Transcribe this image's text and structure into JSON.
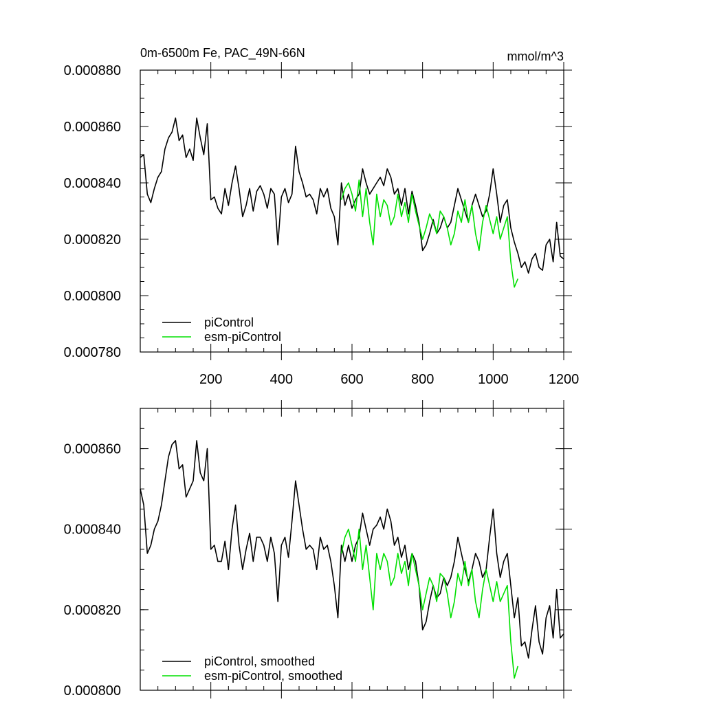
{
  "chart_data": [
    {
      "type": "line",
      "title": "0m-6500m Fe, PAC_49N-66N",
      "units": "mmol/m^3",
      "xlim": [
        0,
        1200
      ],
      "ylim": [
        0.00078,
        0.00088
      ],
      "x_ticks": [
        200,
        400,
        600,
        800,
        1000,
        1200
      ],
      "x_tick_labels": [
        "200",
        "400",
        "600",
        "800",
        "1000",
        "1200"
      ],
      "y_ticks": [
        0.00078,
        0.0008,
        0.00082,
        0.00084,
        0.00086,
        0.00088
      ],
      "y_tick_labels": [
        "0.000780",
        "0.000800",
        "0.000820",
        "0.000840",
        "0.000860",
        "0.000880"
      ],
      "legend": [
        "piControl",
        "esm-piControl"
      ],
      "series": [
        {
          "name": "piControl",
          "color": "#000000",
          "x": [
            0,
            10,
            20,
            30,
            40,
            50,
            60,
            70,
            80,
            90,
            100,
            110,
            120,
            130,
            140,
            150,
            160,
            170,
            180,
            190,
            200,
            210,
            220,
            230,
            240,
            250,
            260,
            270,
            280,
            290,
            300,
            310,
            320,
            330,
            340,
            350,
            360,
            370,
            380,
            390,
            400,
            410,
            420,
            430,
            440,
            450,
            460,
            470,
            480,
            490,
            500,
            510,
            520,
            530,
            540,
            550,
            560,
            570,
            580,
            590,
            600,
            610,
            620,
            630,
            640,
            650,
            660,
            670,
            680,
            690,
            700,
            710,
            720,
            730,
            740,
            750,
            760,
            770,
            780,
            790,
            800,
            810,
            820,
            830,
            840,
            850,
            860,
            870,
            880,
            890,
            900,
            910,
            920,
            930,
            940,
            950,
            960,
            970,
            980,
            990,
            1000,
            1010,
            1020,
            1030,
            1040,
            1050,
            1060,
            1070,
            1080,
            1090,
            1100,
            1110,
            1120,
            1130,
            1140,
            1150,
            1160,
            1170,
            1180,
            1190,
            1200
          ],
          "y": [
            0.000849,
            0.00085,
            0.000836,
            0.000833,
            0.000838,
            0.000842,
            0.000844,
            0.000852,
            0.000856,
            0.000858,
            0.000863,
            0.000855,
            0.000857,
            0.000849,
            0.000852,
            0.000848,
            0.000863,
            0.000856,
            0.00085,
            0.000861,
            0.000834,
            0.000835,
            0.000831,
            0.000829,
            0.000838,
            0.000832,
            0.00084,
            0.000846,
            0.000838,
            0.000828,
            0.000832,
            0.000838,
            0.00083,
            0.000837,
            0.000839,
            0.000836,
            0.000831,
            0.000838,
            0.000836,
            0.000818,
            0.000835,
            0.000838,
            0.000833,
            0.000836,
            0.000853,
            0.000844,
            0.00084,
            0.000835,
            0.000836,
            0.000834,
            0.000829,
            0.000838,
            0.000835,
            0.000838,
            0.000831,
            0.000828,
            0.000818,
            0.00084,
            0.000832,
            0.000836,
            0.000831,
            0.000834,
            0.000836,
            0.000845,
            0.00084,
            0.000836,
            0.000838,
            0.00084,
            0.000842,
            0.000839,
            0.000845,
            0.000842,
            0.000836,
            0.000838,
            0.000832,
            0.000838,
            0.000829,
            0.000837,
            0.000832,
            0.000826,
            0.000816,
            0.000818,
            0.000822,
            0.000827,
            0.000822,
            0.000824,
            0.000828,
            0.000824,
            0.000826,
            0.000832,
            0.000838,
            0.000834,
            0.00083,
            0.000826,
            0.000832,
            0.000836,
            0.000832,
            0.000828,
            0.00083,
            0.000836,
            0.000845,
            0.000836,
            0.000826,
            0.000832,
            0.000834,
            0.000824,
            0.000819,
            0.000815,
            0.00081,
            0.000812,
            0.000808,
            0.000813,
            0.000815,
            0.00081,
            0.000809,
            0.000818,
            0.00082,
            0.000812,
            0.000826,
            0.000814,
            0.000813
          ]
        },
        {
          "name": "esm-piControl",
          "color": "#00e000",
          "x": [
            570,
            580,
            590,
            600,
            610,
            620,
            630,
            640,
            650,
            660,
            670,
            680,
            690,
            700,
            710,
            720,
            730,
            740,
            750,
            760,
            770,
            780,
            790,
            800,
            810,
            820,
            830,
            840,
            850,
            860,
            870,
            880,
            890,
            900,
            910,
            920,
            930,
            940,
            950,
            960,
            970,
            980,
            990,
            1000,
            1010,
            1020,
            1030,
            1040,
            1050,
            1060,
            1070
          ],
          "y": [
            0.000834,
            0.000838,
            0.00084,
            0.000836,
            0.00083,
            0.000841,
            0.000828,
            0.000838,
            0.000826,
            0.000818,
            0.000836,
            0.000828,
            0.000834,
            0.000832,
            0.000825,
            0.000828,
            0.000836,
            0.000828,
            0.000833,
            0.000826,
            0.000836,
            0.00083,
            0.000825,
            0.00082,
            0.000824,
            0.000829,
            0.000826,
            0.000822,
            0.00083,
            0.000828,
            0.000824,
            0.000818,
            0.000822,
            0.00083,
            0.000826,
            0.000834,
            0.000826,
            0.000832,
            0.000822,
            0.000816,
            0.000826,
            0.000832,
            0.000827,
            0.000822,
            0.000828,
            0.00082,
            0.000824,
            0.000828,
            0.000812,
            0.000803,
            0.000806
          ]
        }
      ]
    },
    {
      "type": "line",
      "title": "",
      "xlim": [
        0,
        1200
      ],
      "ylim": [
        0.0008,
        0.00087
      ],
      "x_ticks": [
        200,
        400,
        600,
        800,
        1000,
        1200
      ],
      "y_ticks": [
        0.0008,
        0.00082,
        0.00084,
        0.00086
      ],
      "y_tick_labels": [
        "0.000800",
        "0.000820",
        "0.000840",
        "0.000860"
      ],
      "legend": [
        "piControl, smoothed",
        "esm-piControl, smoothed"
      ],
      "series": [
        {
          "name": "piControl, smoothed",
          "color": "#000000",
          "x": [
            0,
            10,
            20,
            30,
            40,
            50,
            60,
            70,
            80,
            90,
            100,
            110,
            120,
            130,
            140,
            150,
            160,
            170,
            180,
            190,
            200,
            210,
            220,
            230,
            240,
            250,
            260,
            270,
            280,
            290,
            300,
            310,
            320,
            330,
            340,
            350,
            360,
            370,
            380,
            390,
            400,
            410,
            420,
            430,
            440,
            450,
            460,
            470,
            480,
            490,
            500,
            510,
            520,
            530,
            540,
            550,
            560,
            570,
            580,
            590,
            600,
            610,
            620,
            630,
            640,
            650,
            660,
            670,
            680,
            690,
            700,
            710,
            720,
            730,
            740,
            750,
            760,
            770,
            780,
            790,
            800,
            810,
            820,
            830,
            840,
            850,
            860,
            870,
            880,
            890,
            900,
            910,
            920,
            930,
            940,
            950,
            960,
            970,
            980,
            990,
            1000,
            1010,
            1020,
            1030,
            1040,
            1050,
            1060,
            1070,
            1080,
            1090,
            1100,
            1110,
            1120,
            1130,
            1140,
            1150,
            1160,
            1170,
            1180,
            1190,
            1200
          ],
          "y": [
            0.00085,
            0.000846,
            0.000834,
            0.000836,
            0.00084,
            0.000842,
            0.000846,
            0.000852,
            0.000858,
            0.000861,
            0.000862,
            0.000855,
            0.000856,
            0.000848,
            0.00085,
            0.000852,
            0.000862,
            0.000854,
            0.000852,
            0.00086,
            0.000835,
            0.000836,
            0.000832,
            0.000832,
            0.000837,
            0.00083,
            0.00084,
            0.000846,
            0.000836,
            0.00083,
            0.000835,
            0.000839,
            0.000832,
            0.000838,
            0.000838,
            0.000836,
            0.000832,
            0.000838,
            0.000834,
            0.000822,
            0.000836,
            0.000838,
            0.000833,
            0.000842,
            0.000852,
            0.000846,
            0.00084,
            0.000835,
            0.000836,
            0.000835,
            0.00083,
            0.000838,
            0.000835,
            0.000836,
            0.000832,
            0.000826,
            0.000818,
            0.000836,
            0.000832,
            0.000836,
            0.000832,
            0.000836,
            0.000838,
            0.000844,
            0.00084,
            0.000836,
            0.00084,
            0.000841,
            0.000843,
            0.00084,
            0.000845,
            0.000842,
            0.000836,
            0.000838,
            0.000833,
            0.000836,
            0.00083,
            0.000834,
            0.000832,
            0.000826,
            0.000815,
            0.000817,
            0.000822,
            0.000826,
            0.000823,
            0.000824,
            0.000828,
            0.000826,
            0.000828,
            0.000832,
            0.000838,
            0.000834,
            0.00083,
            0.000827,
            0.00083,
            0.000834,
            0.000832,
            0.000828,
            0.00083,
            0.000838,
            0.000845,
            0.000834,
            0.000828,
            0.000832,
            0.000834,
            0.000826,
            0.000818,
            0.000823,
            0.000811,
            0.000812,
            0.000808,
            0.000815,
            0.000821,
            0.000812,
            0.000809,
            0.000818,
            0.000821,
            0.000813,
            0.000825,
            0.000813,
            0.000814
          ]
        },
        {
          "name": "esm-piControl, smoothed",
          "color": "#00e000",
          "x": [
            570,
            580,
            590,
            600,
            610,
            620,
            630,
            640,
            650,
            660,
            670,
            680,
            690,
            700,
            710,
            720,
            730,
            740,
            750,
            760,
            770,
            780,
            790,
            800,
            810,
            820,
            830,
            840,
            850,
            860,
            870,
            880,
            890,
            900,
            910,
            920,
            930,
            940,
            950,
            960,
            970,
            980,
            990,
            1000,
            1010,
            1020,
            1030,
            1040,
            1050,
            1060,
            1070
          ],
          "y": [
            0.000834,
            0.000838,
            0.00084,
            0.000836,
            0.000832,
            0.00084,
            0.00083,
            0.000836,
            0.000828,
            0.00082,
            0.000834,
            0.00083,
            0.000834,
            0.000832,
            0.000826,
            0.000828,
            0.000834,
            0.000829,
            0.000832,
            0.000826,
            0.000834,
            0.00083,
            0.000826,
            0.00082,
            0.000824,
            0.000828,
            0.000826,
            0.000822,
            0.000829,
            0.000828,
            0.000824,
            0.000818,
            0.000822,
            0.000829,
            0.000826,
            0.000832,
            0.000826,
            0.00083,
            0.000822,
            0.000818,
            0.000825,
            0.00083,
            0.000826,
            0.000822,
            0.000827,
            0.000822,
            0.000824,
            0.000826,
            0.000812,
            0.000803,
            0.000806
          ]
        }
      ]
    }
  ]
}
